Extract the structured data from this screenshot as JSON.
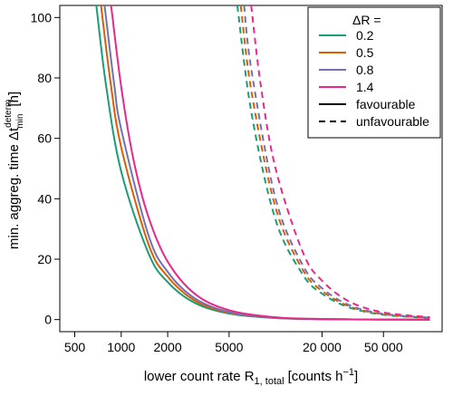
{
  "chart_data": {
    "type": "line",
    "x_scale": "log",
    "xlabel": "lower count rate R",
    "xlabel_sub": "1, total",
    "xlabel_units": "[counts h",
    "xlabel_units_sup": "−1",
    "xlabel_units_end": "]",
    "ylabel": "min. aggreg. time Δt",
    "ylabel_sub": "min",
    "ylabel_sup": "determ",
    "ylabel_units": "[h]",
    "xlim": [
      400,
      120000
    ],
    "ylim": [
      -4,
      104
    ],
    "x_ticks": [
      500,
      1000,
      2000,
      5000,
      20000,
      50000
    ],
    "x_tick_labels": [
      "500",
      "1000",
      "2000",
      "5000",
      "20 000",
      "50 000"
    ],
    "y_ticks": [
      0,
      20,
      40,
      60,
      80,
      100
    ],
    "y_tick_labels": [
      "0",
      "20",
      "40",
      "60",
      "80",
      "100"
    ],
    "grid": false,
    "legend": {
      "position": "top-right",
      "title": "ΔR =",
      "color_entries": [
        {
          "label": "0.2",
          "color": "#1a9e77"
        },
        {
          "label": "0.5",
          "color": "#d95f02"
        },
        {
          "label": "0.8",
          "color": "#7570b3"
        },
        {
          "label": "1.4",
          "color": "#e7298a"
        }
      ],
      "style_entries": [
        {
          "label": "favourable",
          "dash": "solid"
        },
        {
          "label": "unfavourable",
          "dash": "dashed"
        }
      ]
    },
    "series": [
      {
        "name": "0.2",
        "scenario": "favourable",
        "color": "#1a9e77",
        "dash": "solid",
        "x": [
          690,
          800,
          1000,
          1500,
          2000,
          3000,
          5000,
          10000,
          20000,
          50000,
          100000
        ],
        "y": [
          104,
          77,
          49,
          22,
          12.4,
          5.5,
          2.0,
          0.5,
          0.12,
          0.02,
          0.0
        ]
      },
      {
        "name": "0.5",
        "scenario": "favourable",
        "color": "#d95f02",
        "dash": "solid",
        "x": [
          740,
          850,
          1000,
          1500,
          2000,
          3000,
          5000,
          10000,
          20000,
          50000,
          100000
        ],
        "y": [
          104,
          79,
          57,
          25,
          14.2,
          6.3,
          2.3,
          0.57,
          0.14,
          0.02,
          0.0
        ]
      },
      {
        "name": "0.8",
        "scenario": "favourable",
        "color": "#7570b3",
        "dash": "solid",
        "x": [
          780,
          900,
          1000,
          1500,
          2000,
          3000,
          5000,
          10000,
          20000,
          50000,
          100000
        ],
        "y": [
          104,
          78,
          63,
          28,
          15.8,
          7.0,
          2.5,
          0.63,
          0.16,
          0.03,
          0.0
        ]
      },
      {
        "name": "1.4",
        "scenario": "favourable",
        "color": "#e7298a",
        "dash": "solid",
        "x": [
          860,
          1000,
          1200,
          1500,
          2000,
          3000,
          5000,
          10000,
          20000,
          50000,
          100000
        ],
        "y": [
          104,
          77,
          53,
          34,
          19.2,
          8.5,
          3.1,
          0.77,
          0.19,
          0.03,
          0.01
        ]
      },
      {
        "name": "0.2",
        "scenario": "unfavourable",
        "color": "#1a9e77",
        "dash": "dashed",
        "x": [
          5650,
          7000,
          10000,
          15000,
          20000,
          30000,
          50000,
          100000
        ],
        "y": [
          104,
          68,
          33,
          14.9,
          8.6,
          4.0,
          1.6,
          0.55
        ]
      },
      {
        "name": "0.5",
        "scenario": "unfavourable",
        "color": "#d95f02",
        "dash": "dashed",
        "x": [
          5950,
          7000,
          10000,
          15000,
          20000,
          30000,
          50000,
          100000
        ],
        "y": [
          104,
          75,
          37,
          16.5,
          9.5,
          4.4,
          1.75,
          0.6
        ]
      },
      {
        "name": "0.8",
        "scenario": "unfavourable",
        "color": "#7570b3",
        "dash": "dashed",
        "x": [
          6250,
          7000,
          10000,
          15000,
          20000,
          30000,
          50000,
          100000
        ],
        "y": [
          104,
          82,
          40,
          18,
          10.4,
          4.8,
          1.9,
          0.65
        ]
      },
      {
        "name": "1.4",
        "scenario": "unfavourable",
        "color": "#e7298a",
        "dash": "dashed",
        "x": [
          6950,
          8000,
          10000,
          15000,
          20000,
          30000,
          50000,
          100000
        ],
        "y": [
          104,
          78,
          50,
          22.3,
          12.9,
          6.0,
          2.35,
          0.8
        ]
      }
    ]
  }
}
